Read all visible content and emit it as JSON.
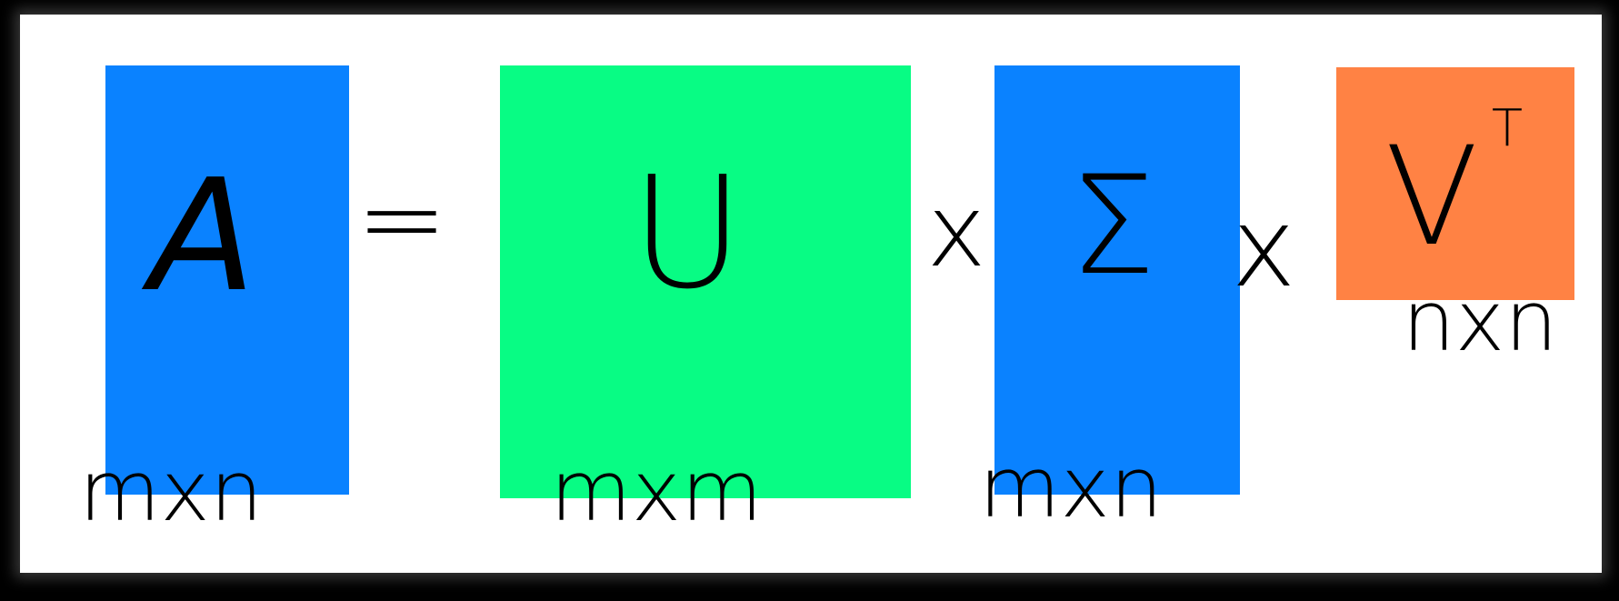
{
  "diagram": {
    "blocks": [
      {
        "id": "A",
        "symbol": "A",
        "dims": "mxn",
        "color": "#0a82ff"
      },
      {
        "id": "U",
        "symbol": "U",
        "dims": "mxm",
        "color": "#08fc84"
      },
      {
        "id": "Sigma",
        "symbol": "Σ",
        "dims": "mxn",
        "color": "#0a82ff"
      },
      {
        "id": "VT",
        "symbol": "V",
        "superscript": "T",
        "dims": "nxn",
        "color": "#ff8244"
      }
    ],
    "operators": {
      "equals": "=",
      "times_1": "x",
      "times_2": "x"
    }
  }
}
